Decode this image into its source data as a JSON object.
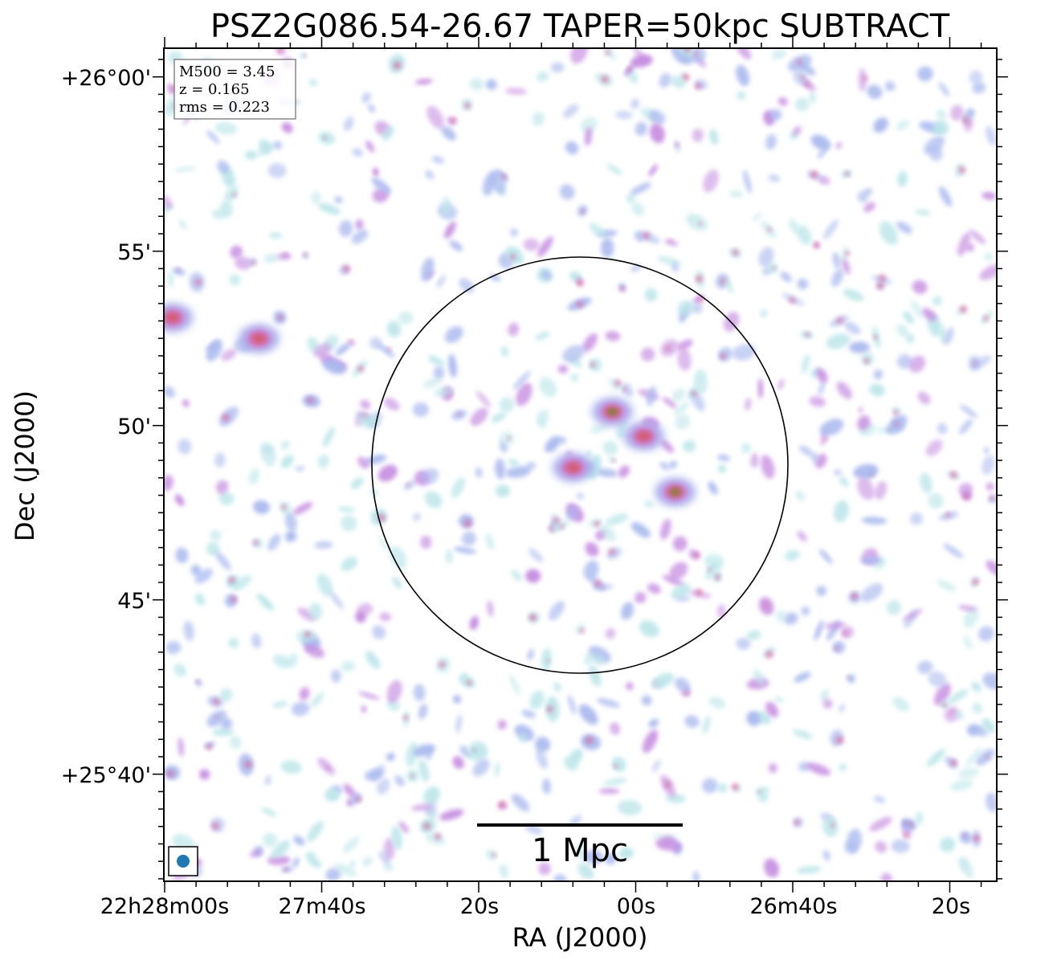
{
  "chart_data": {
    "type": "heatmap",
    "title": "PSZ2G086.54-26.67 TAPER=50kpc SUBTRACT",
    "xlabel": "RA (J2000)",
    "ylabel": "Dec (J2000)",
    "x_ticks": [
      "22h28m00s",
      "27m40s",
      "20s",
      "00s",
      "26m40s",
      "20s"
    ],
    "y_ticks": [
      "+26°00'",
      "55'",
      "50'",
      "45'",
      "+25°40'"
    ],
    "info_box": [
      "M500 = 3.45",
      "z = 0.165",
      "rms = 0.223"
    ],
    "scale_bar_label": "1 Mpc",
    "grid": false,
    "colormap_colors": [
      "#bde6ea",
      "#a9b9ee",
      "#c58be0",
      "#d46aa2",
      "#cf5a66",
      "#8e7a3c"
    ],
    "circle_color": "#000000",
    "beam_color": "#1f77b4",
    "bright_sources": [
      {
        "ra": "22h26m55s",
        "dec": "+25°48.1'",
        "level": 5
      },
      {
        "ra": "22h27m03s",
        "dec": "+25°50.4'",
        "level": 5
      },
      {
        "ra": "22h26m59s",
        "dec": "+25°49.7'",
        "level": 4
      },
      {
        "ra": "22h27m08s",
        "dec": "+25°48.8'",
        "level": 4
      },
      {
        "ra": "22h27m59s",
        "dec": "+25°53.1'",
        "level": 4
      },
      {
        "ra": "22h27m48s",
        "dec": "+25°52.5'",
        "level": 4
      }
    ]
  }
}
